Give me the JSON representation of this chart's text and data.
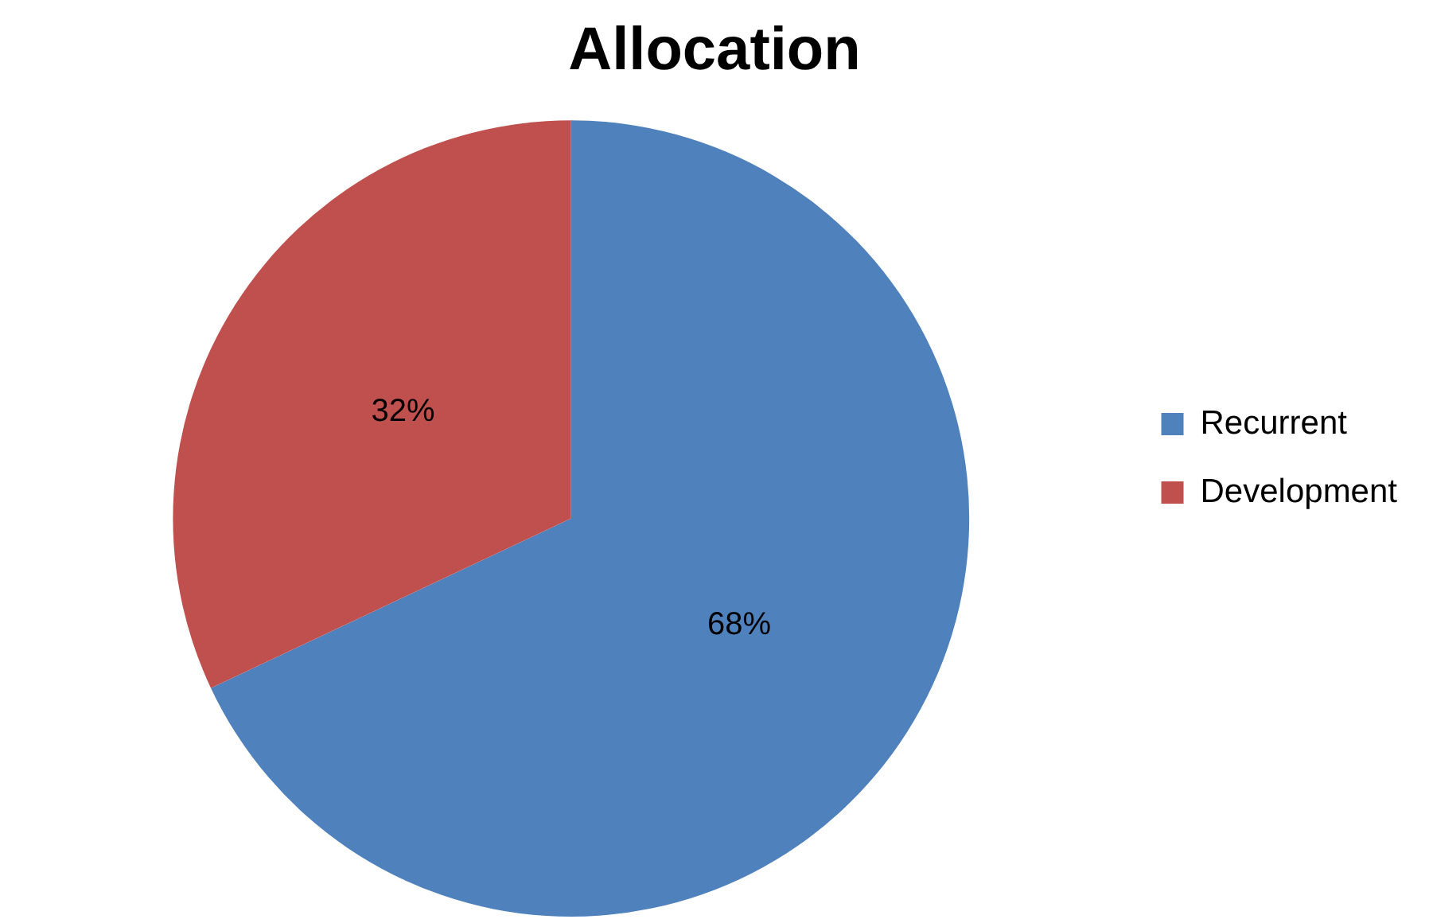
{
  "chart_data": {
    "type": "pie",
    "title": "Allocation",
    "categories": [
      "Recurrent",
      "Development"
    ],
    "values": [
      68,
      32
    ],
    "colors": [
      "#4f81bd",
      "#c0504d"
    ],
    "value_labels": [
      "68%",
      "32%"
    ],
    "legend": "right"
  }
}
